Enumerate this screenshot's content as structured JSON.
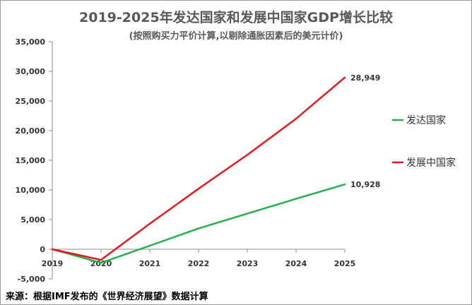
{
  "chart_data": {
    "type": "line",
    "title": "2019-2025年发达国家和发展中国家GDP增长比较",
    "subtitle": "(按照购买力平价计算,以剔除通胀因素后的美元计价)",
    "x": [
      "2019",
      "2020",
      "2021",
      "2022",
      "2023",
      "2024",
      "2025"
    ],
    "ylim": [
      -5000,
      35000
    ],
    "yticks": [
      -5000,
      0,
      5000,
      10000,
      15000,
      20000,
      25000,
      30000,
      35000
    ],
    "ytick_labels": [
      "-5,000",
      "0",
      "5,000",
      "10,000",
      "15,000",
      "20,000",
      "25,000",
      "30,000",
      "35,000"
    ],
    "series": [
      {
        "name": "发达国家",
        "color": "#22b14c",
        "values": [
          0,
          -2300,
          600,
          3500,
          6000,
          8500,
          10928
        ],
        "end_label": "10,928"
      },
      {
        "name": "发展中国家",
        "color": "#e31a1c",
        "values": [
          0,
          -1800,
          4300,
          10200,
          15900,
          22000,
          28949
        ],
        "end_label": "28,949"
      }
    ],
    "grid": false,
    "legend_position": "right"
  },
  "source": "来源：根据IMF发布的《世界经济展望》数据计算"
}
